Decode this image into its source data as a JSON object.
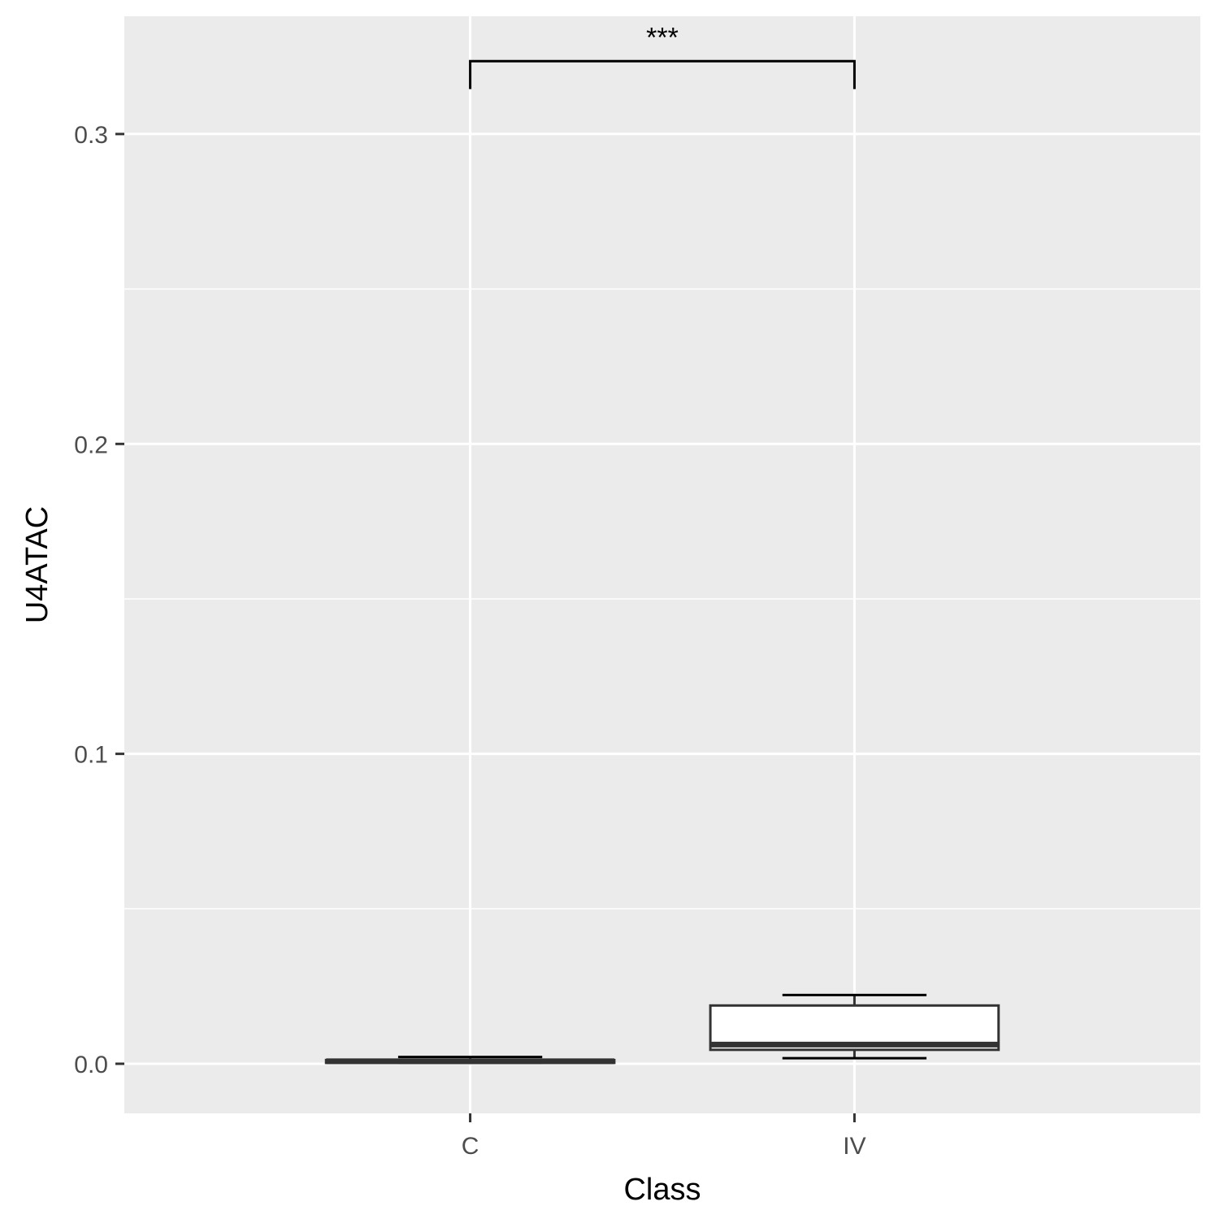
{
  "chart_data": {
    "type": "box",
    "xlabel": "Class",
    "ylabel": "U4ATAC",
    "categories": [
      "C",
      "IV"
    ],
    "ylim": [
      -0.016,
      0.338
    ],
    "yticks": [
      0.0,
      0.1,
      0.2,
      0.3
    ],
    "ytick_labels": [
      "0.0",
      "0.1",
      "0.2",
      "0.3"
    ],
    "boxes": [
      {
        "category": "C",
        "whisker_low": 0.0003,
        "q1": 0.0003,
        "median": 0.0008,
        "q3": 0.0012,
        "whisker_high": 0.0022
      },
      {
        "category": "IV",
        "whisker_low": 0.0018,
        "q1": 0.0045,
        "median": 0.0062,
        "q3": 0.0188,
        "whisker_high": 0.0222
      }
    ],
    "significance": {
      "from": "C",
      "to": "IV",
      "label": "***",
      "y": 0.3235,
      "tip_y": 0.3145
    },
    "grid": true,
    "legend": "none",
    "colors": {
      "panel": "#EBEBEB",
      "grid": "#FFFFFF",
      "box_fill": "#FFFFFF",
      "box_line": "#333333",
      "bracket": "#000000"
    }
  }
}
